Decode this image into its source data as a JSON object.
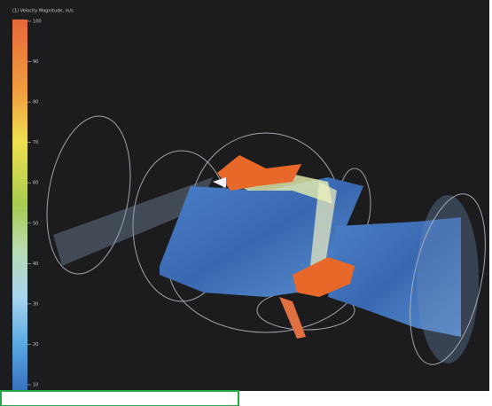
{
  "legend": {
    "title": "(1) Velocity Magnitude, m/s",
    "ticks": [
      100,
      90,
      80,
      70,
      60,
      50,
      40,
      30,
      20,
      10
    ]
  }
}
